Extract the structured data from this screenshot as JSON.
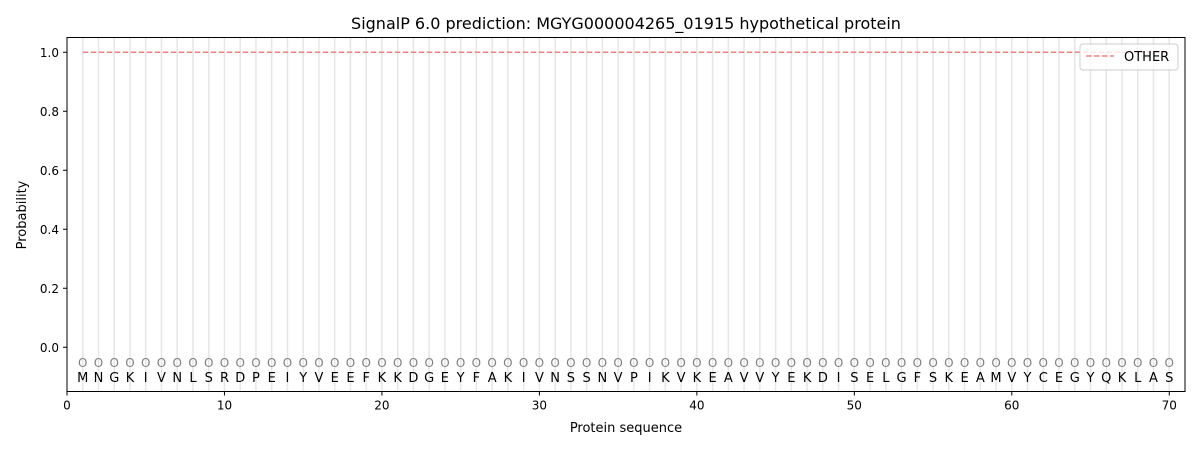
{
  "chart_data": {
    "type": "line",
    "title": "SignalP 6.0 prediction: MGYG000004265_01915 hypothetical protein",
    "xlabel": "Protein sequence",
    "ylabel": "Probability",
    "xlim": [
      0,
      71
    ],
    "ylim": [
      -0.15,
      1.05
    ],
    "xticks": [
      0,
      10,
      20,
      30,
      40,
      50,
      60,
      70
    ],
    "yticks": [
      0.0,
      0.2,
      0.4,
      0.6,
      0.8,
      1.0
    ],
    "ytick_labels": [
      "0.0",
      "0.2",
      "0.4",
      "0.6",
      "0.8",
      "1.0"
    ],
    "grid": "vertical lines at each residue",
    "legend_position": "top-right",
    "series": [
      {
        "name": "OTHER",
        "color": "#f08080",
        "style": "dashed",
        "x_start": 1,
        "x_end": 70,
        "value": 1.0
      }
    ],
    "sequence": [
      "M",
      "N",
      "G",
      "K",
      "I",
      "V",
      "N",
      "L",
      "S",
      "R",
      "D",
      "P",
      "E",
      "I",
      "Y",
      "V",
      "E",
      "E",
      "F",
      "K",
      "K",
      "D",
      "G",
      "E",
      "Y",
      "F",
      "A",
      "K",
      "I",
      "V",
      "N",
      "S",
      "S",
      "N",
      "V",
      "P",
      "I",
      "K",
      "V",
      "K",
      "E",
      "A",
      "V",
      "V",
      "Y",
      "E",
      "K",
      "D",
      "I",
      "S",
      "E",
      "L",
      "G",
      "F",
      "S",
      "K",
      "E",
      "A",
      "M",
      "V",
      "Y",
      "C",
      "E",
      "G",
      "Y",
      "Q",
      "K",
      "L",
      "A",
      "S"
    ],
    "prediction_label": "O",
    "prediction_label_y": -0.05
  }
}
